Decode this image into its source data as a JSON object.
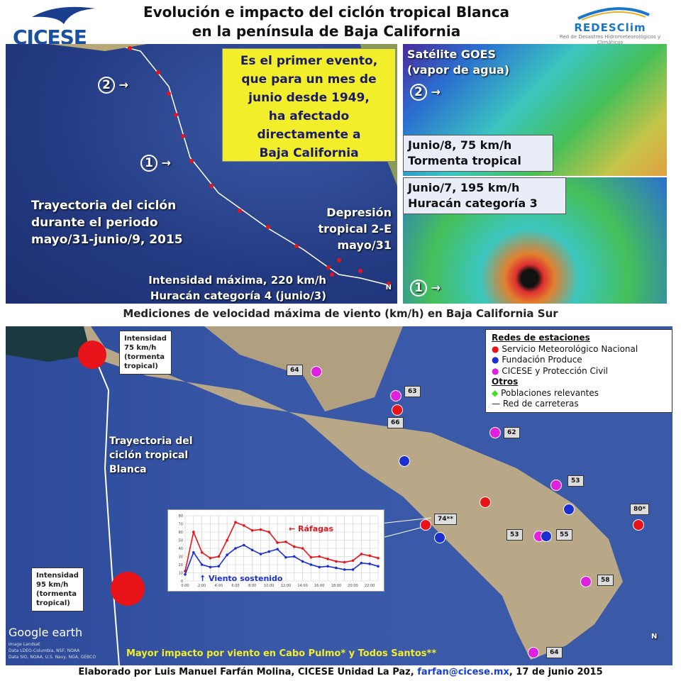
{
  "header": {
    "title_line1": "Evolución e impacto del ciclón tropical Blanca",
    "title_line2": "en la península de Baja California",
    "logo_left": "CICESE",
    "logo_right": "REDESClim",
    "logo_right_sub": "Red de Desastres Hidrometeorológicos y Climáticos"
  },
  "top_map": {
    "notice": [
      "Es el primer evento,",
      "que para un mes de",
      "junio desde 1949,",
      "ha afectado",
      "directamente a",
      "Baja California"
    ],
    "trajectory": [
      "Trayectoria del ciclón",
      "durante  el periodo",
      "mayo/31-junio/9,  2015"
    ],
    "depression": [
      "Depresión",
      "tropical 2-E",
      "mayo/31"
    ],
    "max_intensity": "Intensidad máxima,  220 km/h",
    "max_category": "Huracán categoría 4 (junio/3)",
    "marker1": "1",
    "marker2": "2",
    "north": "N"
  },
  "satellite": {
    "label": [
      "Satélite GOES",
      "(vapor de agua)"
    ],
    "panel2": [
      "Junio/8, 75 km/h",
      "Tormenta tropical"
    ],
    "panel1": [
      "Junio/7, 195 km/h",
      "Huracán categoría 3"
    ],
    "marker1": "1",
    "marker2": "2"
  },
  "caption": "Mediciones de velocidad máxima de viento (km/h) en Baja California Sur",
  "bottom_map": {
    "intensity_top": [
      "Intensidad",
      "75 km/h",
      "(tormenta",
      "tropical)"
    ],
    "intensity_bottom": [
      "Intensidad",
      "95 km/h",
      "(tormenta",
      "tropical)"
    ],
    "trajectory": [
      "Trayectoria del",
      "ciclón tropical",
      "Blanca"
    ],
    "legend": {
      "heading1": "Redes de estaciones",
      "items": [
        {
          "label": "Servicio Meteorológico Nacional",
          "color": "#e8141a"
        },
        {
          "label": "Fundación Produce",
          "color": "#1a2fd0"
        },
        {
          "label": "CICESE y Protección Civil",
          "color": "#e020e0"
        }
      ],
      "heading2": "Otros",
      "others": [
        {
          "label": "Poblaciones relevantes",
          "color": "#40e020"
        },
        {
          "label": "Red de carreteras",
          "color": "#111111"
        }
      ]
    },
    "stations": [
      "64",
      "63",
      "66",
      "62",
      "53",
      "74**",
      "80*",
      "53",
      "55",
      "58",
      "64"
    ],
    "impact": "Mayor impacto por viento en Cabo Pulmo* y Todos Santos**",
    "google": "Google earth",
    "attribution": [
      "Image Landsat",
      "Data LDEO-Columbia, NSF, NOAA",
      "Data SIO, NOAA, U.S. Navy, NGA, GEBCO"
    ],
    "north": "N"
  },
  "chart_data": {
    "type": "line",
    "x_tick_labels": [
      "0:00",
      "2:00",
      "4:00",
      "6:00",
      "8:00",
      "10:00",
      "12:00",
      "14:00",
      "16:00",
      "18:00",
      "20:00",
      "22:00"
    ],
    "x": [
      0,
      1,
      2,
      3,
      4,
      5,
      6,
      7,
      8,
      9,
      10,
      11,
      12,
      13,
      14,
      15,
      16,
      17,
      18,
      19,
      20,
      21,
      22,
      23
    ],
    "ylim": [
      0,
      80
    ],
    "yticks": [
      0,
      10,
      20,
      30,
      40,
      50,
      60,
      70,
      80
    ],
    "series": [
      {
        "name": "Ráfagas",
        "color": "#e8141a",
        "values": [
          12,
          60,
          35,
          28,
          30,
          50,
          72,
          68,
          62,
          63,
          60,
          47,
          48,
          42,
          40,
          29,
          30,
          27,
          24,
          23,
          25,
          33,
          31,
          28
        ]
      },
      {
        "name": "Viento sostenido",
        "color": "#1a2fd0",
        "values": [
          8,
          35,
          20,
          17,
          18,
          32,
          40,
          44,
          38,
          33,
          36,
          39,
          29,
          30,
          24,
          20,
          17,
          18,
          16,
          14,
          14,
          22,
          21,
          18
        ]
      }
    ],
    "grid": true
  },
  "footer": {
    "text": "Elaborado por Luis Manuel Farfán Molina, CICESE Unidad La Paz, ",
    "email": "farfan@cicese.mx",
    "date": ", 17 de junio 2015"
  }
}
